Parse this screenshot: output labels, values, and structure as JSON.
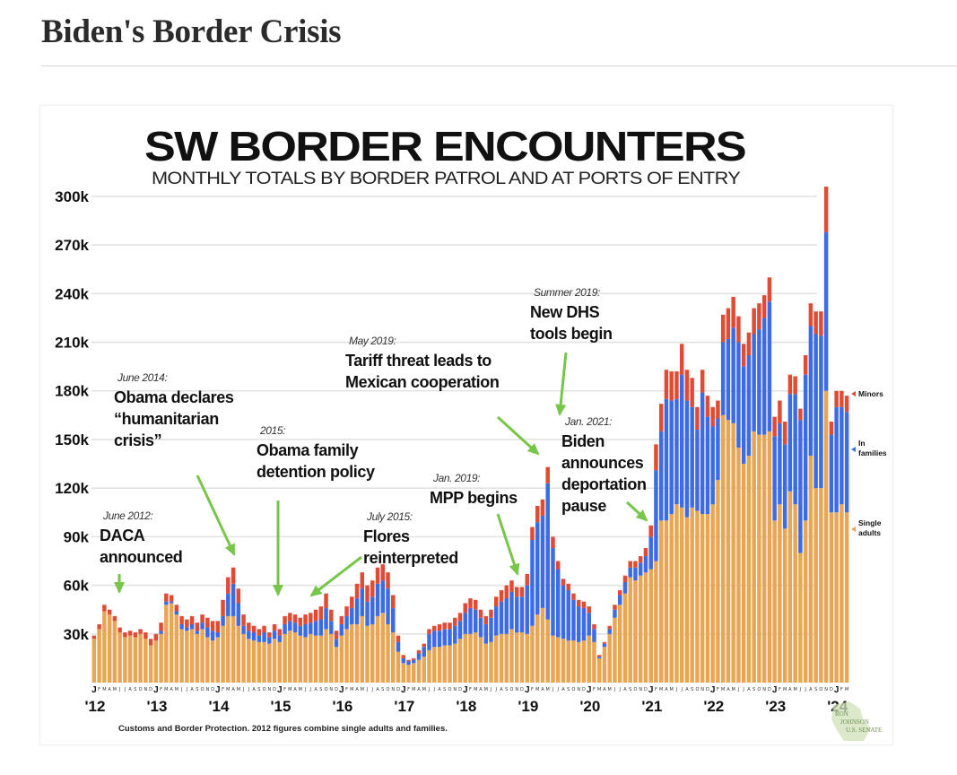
{
  "page": {
    "title": "Biden's Border Crisis"
  },
  "chart_data": {
    "type": "bar",
    "stacked": true,
    "title": "SW BORDER ENCOUNTERS",
    "subtitle": "MONTHLY TOTALS BY BORDER PATROL AND AT PORTS OF ENTRY",
    "xlabel": "",
    "ylabel": "",
    "ylim": [
      0,
      300000
    ],
    "grid": true,
    "yticks": [
      30000,
      60000,
      90000,
      120000,
      150000,
      180000,
      210000,
      240000,
      270000,
      300000
    ],
    "ytick_labels": [
      "30k",
      "60k",
      "90k",
      "120k",
      "150k",
      "180k",
      "210k",
      "240k",
      "270k",
      "300k"
    ],
    "x_start": "2012-01",
    "x_end": "2024-03",
    "year_labels": [
      "'12",
      "'13",
      "'14",
      "'15",
      "'16",
      "'17",
      "'18",
      "'19",
      "'20",
      "'21",
      "'22",
      "'23",
      "'24"
    ],
    "month_initials": [
      "J",
      "F",
      "M",
      "A",
      "M",
      "J",
      "J",
      "A",
      "S",
      "O",
      "N",
      "D"
    ],
    "legend_placement": "right",
    "colors": {
      "single_adults": "#E8A554",
      "in_families": "#3C6BE3",
      "minors": "#E04B35",
      "grid": "#e2e2e2",
      "annotation_arrow": "#77C64A"
    },
    "series": [
      {
        "name": "Single adults",
        "key": "single_adults",
        "values": [
          27,
          33,
          44,
          42,
          38,
          31,
          28,
          29,
          28,
          30,
          27,
          23,
          26,
          30,
          48,
          49,
          42,
          33,
          32,
          33,
          30,
          33,
          28,
          26,
          28,
          35,
          41,
          41,
          35,
          30,
          27,
          26,
          25,
          25,
          24,
          27,
          25,
          30,
          32,
          31,
          29,
          28,
          30,
          29,
          29,
          33,
          30,
          22,
          29,
          33,
          36,
          36,
          41,
          35,
          36,
          41,
          43,
          36,
          31,
          19,
          12,
          11,
          12,
          14,
          16,
          20,
          22,
          22,
          23,
          23,
          24,
          27,
          30,
          30,
          31,
          28,
          24,
          25,
          29,
          30,
          30,
          33,
          31,
          31,
          30,
          35,
          42,
          46,
          39,
          29,
          28,
          27,
          26,
          26,
          25,
          26,
          29,
          25,
          15,
          22,
          30,
          40,
          48,
          55,
          65,
          63,
          66,
          68,
          70,
          75,
          100,
          100,
          104,
          110,
          108,
          102,
          108,
          106,
          104,
          104,
          110,
          125,
          165,
          162,
          160,
          145,
          135,
          140,
          155,
          153,
          153,
          155,
          100,
          110,
          95,
          118,
          110,
          80,
          100,
          140,
          120,
          120,
          180,
          105,
          105,
          110,
          105
        ]
      },
      {
        "name": "In families",
        "key": "in_families",
        "values": [
          0,
          0,
          0,
          0,
          0,
          0,
          0,
          0,
          0,
          0,
          0,
          0,
          0,
          2,
          2,
          1,
          2,
          3,
          2,
          3,
          2,
          4,
          6,
          6,
          3,
          6,
          14,
          20,
          14,
          5,
          5,
          5,
          4,
          6,
          4,
          5,
          4,
          6,
          6,
          6,
          6,
          8,
          7,
          9,
          10,
          13,
          8,
          5,
          7,
          8,
          10,
          16,
          17,
          15,
          17,
          20,
          20,
          22,
          15,
          6,
          3,
          2,
          2,
          4,
          6,
          10,
          10,
          10,
          10,
          10,
          11,
          11,
          13,
          16,
          14,
          12,
          12,
          15,
          18,
          20,
          22,
          23,
          22,
          22,
          30,
          53,
          57,
          57,
          84,
          54,
          42,
          33,
          31,
          25,
          22,
          20,
          14,
          8,
          1,
          2,
          3,
          5,
          6,
          7,
          6,
          8,
          8,
          10,
          20,
          56,
          55,
          75,
          70,
          65,
          82,
          72,
          62,
          50,
          75,
          60,
          48,
          38,
          45,
          50,
          59,
          65,
          60,
          62,
          60,
          65,
          72,
          80,
          52,
          50,
          52,
          60,
          68,
          82,
          90,
          80,
          95,
          94,
          98,
          48,
          65,
          60,
          62
        ]
      },
      {
        "name": "Minors",
        "key": "minors",
        "values": [
          2,
          3,
          4,
          3,
          3,
          3,
          3,
          3,
          3,
          3,
          4,
          4,
          4,
          5,
          5,
          4,
          4,
          5,
          5,
          5,
          5,
          5,
          6,
          6,
          7,
          10,
          10,
          10,
          9,
          7,
          5,
          4,
          4,
          4,
          3,
          4,
          4,
          5,
          5,
          5,
          5,
          6,
          6,
          7,
          8,
          9,
          7,
          5,
          5,
          6,
          7,
          9,
          10,
          10,
          10,
          10,
          10,
          10,
          8,
          4,
          2,
          1,
          1,
          2,
          2,
          3,
          3,
          4,
          4,
          4,
          5,
          5,
          6,
          6,
          6,
          5,
          5,
          5,
          6,
          7,
          8,
          7,
          6,
          6,
          7,
          8,
          10,
          10,
          10,
          7,
          5,
          4,
          4,
          4,
          4,
          4,
          4,
          3,
          1,
          1,
          2,
          3,
          3,
          4,
          4,
          4,
          4,
          5,
          7,
          16,
          17,
          18,
          18,
          17,
          19,
          19,
          18,
          14,
          14,
          13,
          12,
          11,
          17,
          19,
          19,
          16,
          14,
          14,
          16,
          16,
          14,
          15,
          12,
          14,
          14,
          12,
          11,
          7,
          12,
          14,
          14,
          15,
          28,
          8,
          10,
          10,
          10
        ]
      }
    ],
    "value_units": "thousands of encounters per month (estimated from bar heights)",
    "annotations": [
      {
        "date": "June 2012:",
        "text": [
          "DACA",
          "announced"
        ]
      },
      {
        "date": "June 2014:",
        "text": [
          "Obama declares",
          "“humanitarian",
          "crisis”"
        ]
      },
      {
        "date": "2015:",
        "text": [
          "Obama family",
          "detention policy"
        ]
      },
      {
        "date": "July 2015:",
        "text": [
          "Flores",
          "reinterpreted"
        ]
      },
      {
        "date": "Jan. 2019:",
        "text": [
          "MPP begins"
        ]
      },
      {
        "date": "May 2019:",
        "text": [
          "Tariff threat leads to",
          "Mexican cooperation"
        ]
      },
      {
        "date": "Summer 2019:",
        "text": [
          "New DHS",
          "tools begin"
        ]
      },
      {
        "date": "Jan. 2021:",
        "text": [
          "Biden",
          "announces",
          "deportation",
          "pause"
        ]
      }
    ],
    "legend": [
      {
        "label": [
          "Minors"
        ],
        "key": "minors"
      },
      {
        "label": [
          "In",
          "families"
        ],
        "key": "in_families"
      },
      {
        "label": [
          "Single",
          "adults"
        ],
        "key": "single_adults"
      }
    ],
    "source": "Customs and Border Protection. 2012 figures combine single adults and families.",
    "logo_text": [
      "RON",
      "JOHNSON",
      "U.S. SENATE"
    ]
  }
}
